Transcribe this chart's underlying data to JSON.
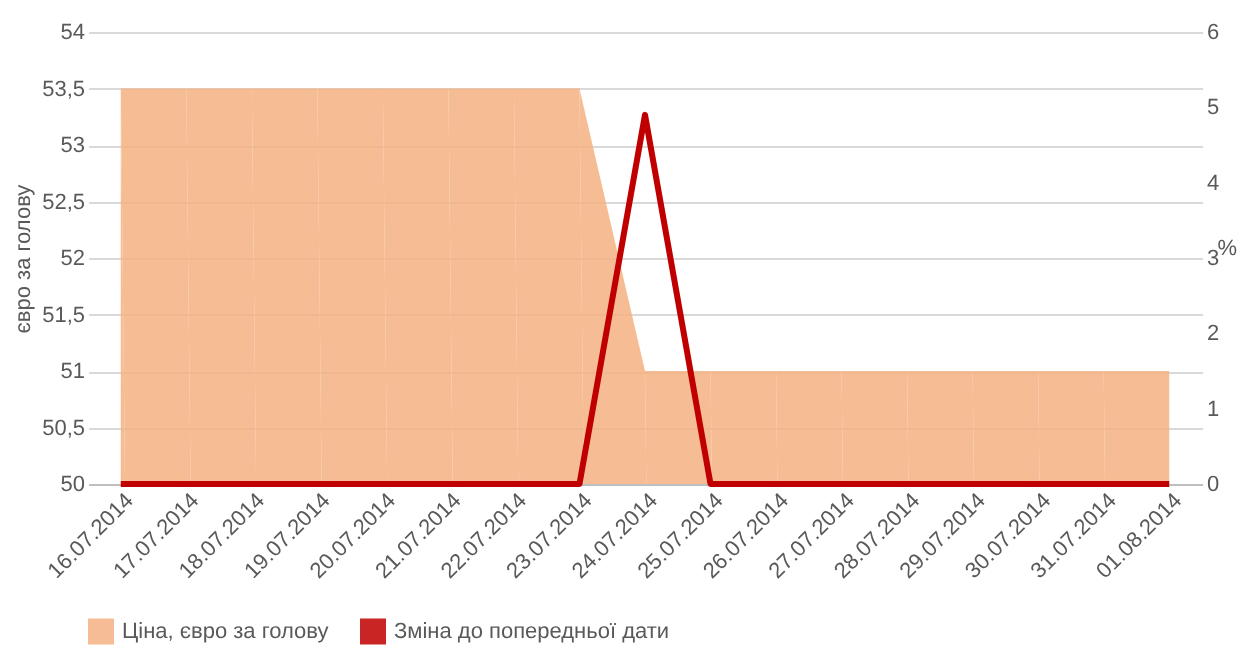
{
  "chart_data": {
    "type": "area",
    "ylabel": "євро за голову",
    "y2label": "%",
    "categories": [
      "16.07.2014",
      "17.07.2014",
      "18.07.2014",
      "19.07.2014",
      "20.07.2014",
      "21.07.2014",
      "22.07.2014",
      "23.07.2014",
      "24.07.2014",
      "25.07.2014",
      "26.07.2014",
      "27.07.2014",
      "28.07.2014",
      "29.07.2014",
      "30.07.2014",
      "31.07.2014",
      "01.08.2014"
    ],
    "series": [
      {
        "name": "Ціна, євро за голову",
        "color": "#f4b183",
        "values": [
          53.5,
          53.5,
          53.5,
          53.5,
          53.5,
          53.5,
          53.5,
          53.5,
          51,
          51,
          51,
          51,
          51,
          51,
          51,
          51,
          51
        ]
      },
      {
        "name": "Зміна до попередньої дати",
        "type": "line",
        "axis": "y2",
        "color": "#c00000",
        "values": [
          0,
          0,
          0,
          0,
          0,
          0,
          0,
          0,
          4.9,
          0,
          0,
          0,
          0,
          0,
          0,
          0,
          0
        ]
      }
    ],
    "ylim": [
      50,
      54
    ],
    "yticks": [
      50,
      {
        "value": 50.5,
        "label": "50,5"
      },
      51,
      {
        "value": 51.5,
        "label": "51,5"
      },
      52,
      {
        "value": 52.5,
        "label": "52,5"
      },
      53,
      {
        "value": 53.5,
        "label": "53,5"
      },
      54
    ],
    "y2lim": [
      0,
      6
    ],
    "y2ticks": [
      0,
      1,
      2,
      3,
      4,
      5,
      6
    ],
    "grid": "y",
    "legend": "bottom",
    "marker": "none",
    "line_style": "solid"
  }
}
